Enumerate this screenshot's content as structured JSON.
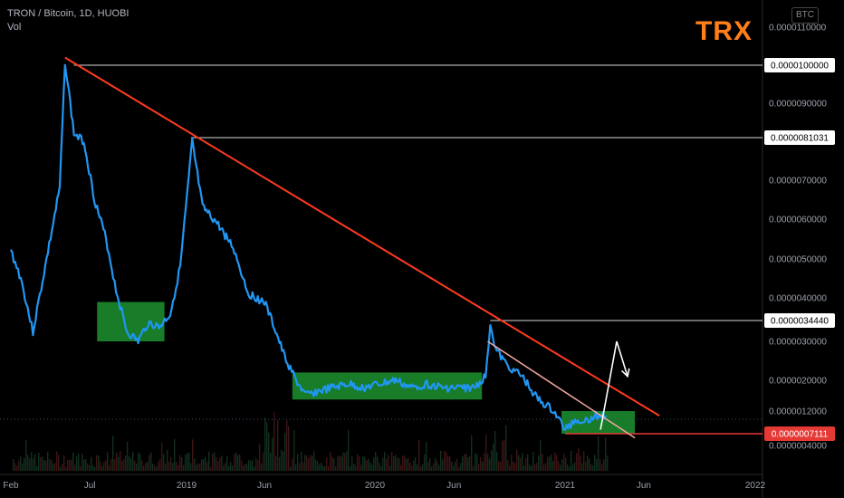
{
  "legend": {
    "title": "TRON / Bitcoin, 1D, HUOBI",
    "volume_label": "Vol"
  },
  "tag": "TRX",
  "currency_badge": "BTC",
  "colors": {
    "price_line": "#2196f3",
    "trendline": "#ff3b1f",
    "support_line": "#e53935",
    "range_box": "#1b8a2e",
    "background": "#000000",
    "volume": "#5a1c1c"
  },
  "chart_data": {
    "type": "line",
    "title": "TRON / Bitcoin, 1D, HUOBI",
    "x_tick_labels": [
      "Feb",
      "Jul",
      "2019",
      "Jun",
      "2020",
      "Jun",
      "2021",
      "Jun",
      "2022"
    ],
    "y_tick_labels": [
      "0.0000110000",
      "0.0000090000",
      "0.0000070000",
      "0.0000060000",
      "0.0000050000",
      "0.0000040000",
      "0.0000030000",
      "0.0000020000",
      "0.0000012000",
      "0.0000004000"
    ],
    "ylim": [
      3e-07,
      1.15e-05
    ],
    "series": [
      {
        "x": [
          "2018-02-01",
          "2018-02-20",
          "2018-03-15",
          "2018-04-10",
          "2018-05-05",
          "2018-05-15",
          "2018-06-01",
          "2018-06-20",
          "2018-07-10",
          "2018-08-01",
          "2018-08-20",
          "2018-09-10",
          "2018-10-01",
          "2018-10-20",
          "2018-11-10",
          "2018-12-01",
          "2018-12-20",
          "2019-01-05",
          "2019-01-12",
          "2019-02-01",
          "2019-03-01",
          "2019-04-01",
          "2019-05-01",
          "2019-06-01",
          "2019-06-20",
          "2019-07-10",
          "2019-08-01",
          "2019-08-20",
          "2019-09-10",
          "2019-10-10",
          "2019-11-10",
          "2019-12-10",
          "2020-01-10",
          "2020-02-10",
          "2020-03-10",
          "2020-04-10",
          "2020-05-10",
          "2020-06-10",
          "2020-07-10",
          "2020-08-01",
          "2020-08-10",
          "2020-08-20",
          "2020-09-10",
          "2020-10-10",
          "2020-11-10",
          "2020-12-10",
          "2021-01-01",
          "2021-01-20",
          "2021-02-10",
          "2021-03-01",
          "2021-03-20"
        ],
        "y": [
          5.2e-06,
          4.5e-06,
          3.2e-06,
          5e-06,
          6.8e-06,
          1.01e-05,
          8.2e-06,
          8e-06,
          6.5e-06,
          5.5e-06,
          4.2e-06,
          3.2e-06,
          3e-06,
          3.4e-06,
          3.3e-06,
          3.6e-06,
          4.8e-06,
          7e-06,
          8e-06,
          6.3e-06,
          5.9e-06,
          5.3e-06,
          4.1e-06,
          3.9e-06,
          3.3e-06,
          2.6e-06,
          2e-06,
          1.6e-06,
          1.7e-06,
          1.8e-06,
          1.9e-06,
          1.8e-06,
          1.9e-06,
          2e-06,
          1.8e-06,
          1.9e-06,
          1.8e-06,
          1.8e-06,
          1.8e-06,
          2.1e-06,
          3.4e-06,
          2.8e-06,
          2.4e-06,
          2.1e-06,
          1.5e-06,
          1.2e-06,
          8e-07,
          1e-06,
          1e-06,
          1.1e-06,
          1.1e-06
        ]
      }
    ],
    "levels": [
      {
        "label": "0.0000100000",
        "value": 1e-05,
        "style": "white"
      },
      {
        "label": "0.0000081031",
        "value": 8.1031e-06,
        "style": "white"
      },
      {
        "label": "0.0000034440",
        "value": 3.444e-06,
        "style": "white"
      },
      {
        "label": "0.0000007111",
        "value": 7.111e-07,
        "style": "red"
      }
    ],
    "trendline": {
      "from": [
        "2018-05-15",
        1.02e-05
      ],
      "to": [
        "2021-07-01",
        1.1e-06
      ]
    },
    "minor_trendline": {
      "from": [
        "2020-08-05",
        3e-06
      ],
      "to": [
        "2021-05-15",
        6e-07
      ]
    },
    "range_boxes": [
      {
        "x": [
          "2018-07-15",
          "2018-11-20"
        ],
        "y": [
          3e-06,
          3.9e-06
        ]
      },
      {
        "x": [
          "2019-07-25",
          "2020-07-25"
        ],
        "y": [
          1.5e-06,
          2.2e-06
        ]
      },
      {
        "x": [
          "2020-12-25",
          "2021-05-15"
        ],
        "y": [
          7.111e-07,
          1.2e-06
        ]
      }
    ],
    "projection_arrow": [
      [
        "2021-03-10",
        8e-07
      ],
      [
        "2021-04-10",
        3e-06
      ],
      [
        "2021-05-01",
        2.1e-06
      ]
    ]
  }
}
